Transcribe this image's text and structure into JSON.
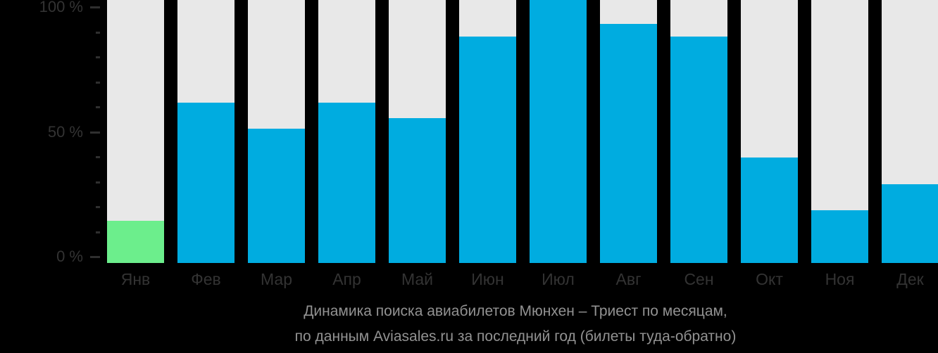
{
  "chart_data": {
    "type": "bar",
    "title": "Динамика поиска авиабилетов Мюнхен – Триест по месяцам,",
    "subtitle": "по данным Aviasales.ru за последний год (билеты туда-обратно)",
    "categories": [
      "Янв",
      "Фев",
      "Мар",
      "Апр",
      "Май",
      "Июн",
      "Июл",
      "Авг",
      "Сен",
      "Окт",
      "Ноя",
      "Дек"
    ],
    "values": [
      16,
      61,
      51,
      61,
      55,
      86,
      100,
      91,
      86,
      40,
      20,
      30
    ],
    "unit": "%",
    "highlight_index": 0,
    "y_axis": {
      "major_ticks": [
        {
          "label": "100 %",
          "value": 100
        },
        {
          "label": "50 %",
          "value": 50
        },
        {
          "label": "0 %",
          "value": 0
        }
      ],
      "minor_tick_step": 10,
      "range": [
        0,
        100
      ]
    },
    "grid": "off",
    "legend": "none",
    "colors": {
      "background": "#000000",
      "column_bg": "#E8E8E8",
      "bar": "#00ACE0",
      "highlight_bar": "#6CEE8C",
      "axis_text": "#333333",
      "tick": "#2F2F2F",
      "caption_text": "#929292"
    }
  }
}
